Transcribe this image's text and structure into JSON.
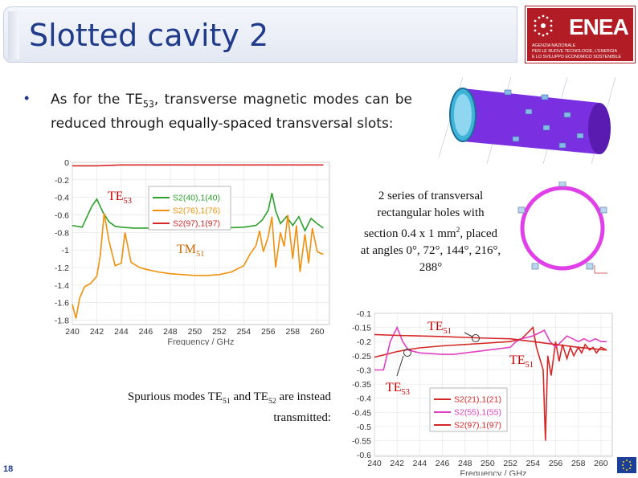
{
  "title": "Slotted cavity 2",
  "logo": {
    "word": "ENEA",
    "lines": [
      "AGENZIA NAZIONALE",
      "PER LE NUOVE TECNOLOGIE, L'ENERGIA",
      "E LO SVILUPPO ECONOMICO SOSTENIBILE"
    ],
    "color": "#b21c24"
  },
  "bullet": {
    "pre": "As for the TE",
    "sub": "53",
    "post": ", transverse magnetic modes can be reduced through equally-spaced transversal slots:"
  },
  "holes_note": {
    "a": "2 series of transversal rectangular holes with section 0.4 x 1 mm",
    "sup": "2",
    "b": ", placed at angles 0°, 72°, 144°, 216°, 288°"
  },
  "spurious_note": {
    "a": "Spurious modes TE",
    "s1": "51",
    "b": " and TE",
    "s2": "52",
    "c": " are instead transmitted:"
  },
  "page_number": "18",
  "chart_data": [
    {
      "type": "line",
      "xlabel": "Frequency / GHz",
      "xlim": [
        240,
        261
      ],
      "ylim": [
        -1.85,
        0
      ],
      "xticks": [
        240,
        242,
        244,
        246,
        248,
        250,
        252,
        254,
        256,
        258,
        260
      ],
      "yticks": [
        0,
        -0.2,
        -0.4,
        -0.6,
        -0.8,
        -1,
        -1.2,
        -1.4,
        -1.6,
        -1.8
      ],
      "ytick_labels": [
        "0",
        "-0.2",
        "-0.4",
        "-0.6",
        "-0.8",
        "-1",
        "-1.2",
        "-1.4",
        "-1.6",
        "-1.8"
      ],
      "legend": "top-center",
      "annotations": [
        {
          "text": "TE",
          "sub": "53",
          "color": "#cc0000"
        },
        {
          "text": "TM",
          "sub": "51",
          "color": "#cc6600"
        }
      ],
      "series": [
        {
          "name": "S2(40),1(40)",
          "color": "#2ca02c",
          "x": [
            240,
            240.8,
            241.2,
            241.6,
            242,
            242.5,
            243,
            243.5,
            244,
            245,
            246,
            248,
            250,
            252,
            254,
            255,
            255.5,
            256,
            256.3,
            256.6,
            257,
            257.5,
            258,
            258.5,
            259,
            259.5,
            260,
            260.5
          ],
          "y": [
            -0.72,
            -0.74,
            -0.62,
            -0.5,
            -0.42,
            -0.57,
            -0.68,
            -0.73,
            -0.74,
            -0.75,
            -0.75,
            -0.75,
            -0.75,
            -0.75,
            -0.74,
            -0.72,
            -0.66,
            -0.55,
            -0.35,
            -0.55,
            -0.7,
            -0.62,
            -0.72,
            -0.62,
            -0.78,
            -0.64,
            -0.7,
            -0.75
          ]
        },
        {
          "name": "S2(76),1(76)",
          "color": "#f0900c",
          "x": [
            240,
            240.3,
            240.6,
            241,
            241.5,
            242,
            242.3,
            242.6,
            243,
            243.5,
            244,
            244.3,
            244.8,
            245.5,
            246,
            247,
            248,
            249,
            250,
            251,
            252,
            253,
            254,
            254.5,
            255,
            255.3,
            255.6,
            256,
            256.3,
            256.6,
            257,
            257.3,
            257.6,
            258,
            258.3,
            258.6,
            259,
            259.3,
            259.6,
            260,
            260.5
          ],
          "y": [
            -1.62,
            -1.78,
            -1.55,
            -1.42,
            -1.38,
            -1.3,
            -1.05,
            -0.58,
            -0.9,
            -1.18,
            -1.15,
            -0.8,
            -1.14,
            -1.2,
            -1.22,
            -1.25,
            -1.27,
            -1.28,
            -1.29,
            -1.29,
            -1.28,
            -1.25,
            -1.18,
            -1.05,
            -0.95,
            -0.78,
            -1.02,
            -0.85,
            -0.62,
            -1.2,
            -0.8,
            -0.96,
            -0.6,
            -1.1,
            -0.72,
            -1.25,
            -0.82,
            -1.15,
            -0.75,
            -1.02,
            -1.05
          ]
        },
        {
          "name": "S2(97),1(97)",
          "color": "#d62728",
          "x": [
            240,
            242,
            244,
            246,
            248,
            250,
            252,
            254,
            256,
            258,
            260.5
          ],
          "y": [
            -0.04,
            -0.04,
            -0.03,
            -0.03,
            -0.03,
            -0.03,
            -0.03,
            -0.03,
            -0.03,
            -0.03,
            -0.03
          ]
        }
      ]
    },
    {
      "type": "line",
      "xlabel": "Frequency / GHz",
      "xlim": [
        240,
        261
      ],
      "ylim": [
        -0.605,
        -0.1
      ],
      "xticks": [
        240,
        242,
        244,
        246,
        248,
        250,
        252,
        254,
        256,
        258,
        260
      ],
      "yticks": [
        -0.1,
        -0.15,
        -0.2,
        -0.25,
        -0.3,
        -0.35,
        -0.4,
        -0.45,
        -0.5,
        -0.55,
        -0.6
      ],
      "ytick_labels": [
        "-0.1",
        "-0.15",
        "-0.2",
        "-0.25",
        "-0.3",
        "-0.35",
        "-0.4",
        "-0.45",
        "-0.5",
        "-0.55",
        "-0.6"
      ],
      "legend": "bottom-left",
      "annotations": [
        {
          "text": "TE",
          "sub": "51",
          "color": "#cc0000"
        },
        {
          "text": "TE",
          "sub": "51",
          "color": "#cc0000"
        },
        {
          "text": "TE",
          "sub": "53",
          "color": "#cc0000"
        }
      ],
      "series": [
        {
          "name": "S2(21),1(21)",
          "color": "#d62728",
          "x": [
            240,
            241,
            242,
            243,
            244,
            246,
            248,
            250,
            252,
            253,
            253.5,
            254,
            254.3,
            254.6,
            254.9,
            255.1,
            255.3,
            255.6,
            256,
            256.3,
            256.6,
            257,
            257.3,
            257.6,
            258,
            258.3,
            258.6,
            259,
            259.3,
            259.6,
            260,
            260.5
          ],
          "y": [
            -0.255,
            -0.245,
            -0.235,
            -0.228,
            -0.222,
            -0.215,
            -0.21,
            -0.205,
            -0.2,
            -0.19,
            -0.17,
            -0.15,
            -0.22,
            -0.26,
            -0.3,
            -0.55,
            -0.25,
            -0.32,
            -0.2,
            -0.27,
            -0.21,
            -0.26,
            -0.22,
            -0.25,
            -0.22,
            -0.24,
            -0.21,
            -0.23,
            -0.22,
            -0.24,
            -0.22,
            -0.23
          ]
        },
        {
          "name": "S2(55),1(55)",
          "color": "#e040c0",
          "x": [
            240,
            240.8,
            241.4,
            242,
            242.5,
            243,
            244,
            246,
            247,
            248,
            249,
            250,
            251,
            252,
            252.5,
            253,
            254,
            255,
            255.5,
            256,
            256.5,
            257,
            257.5,
            258,
            258.5,
            259,
            259.5,
            260,
            260.5
          ],
          "y": [
            -0.3,
            -0.3,
            -0.2,
            -0.15,
            -0.2,
            -0.23,
            -0.24,
            -0.245,
            -0.245,
            -0.24,
            -0.235,
            -0.23,
            -0.225,
            -0.22,
            -0.2,
            -0.19,
            -0.18,
            -0.16,
            -0.2,
            -0.22,
            -0.2,
            -0.18,
            -0.19,
            -0.2,
            -0.19,
            -0.2,
            -0.19,
            -0.2,
            -0.2
          ]
        },
        {
          "name": "S2(97),1(97)",
          "color": "#d62728",
          "x": [
            240,
            242,
            244,
            246,
            248,
            250,
            252,
            254,
            256,
            258,
            260.5
          ],
          "y": [
            -0.175,
            -0.178,
            -0.18,
            -0.182,
            -0.185,
            -0.188,
            -0.19,
            -0.2,
            -0.21,
            -0.22,
            -0.23
          ]
        }
      ]
    }
  ]
}
